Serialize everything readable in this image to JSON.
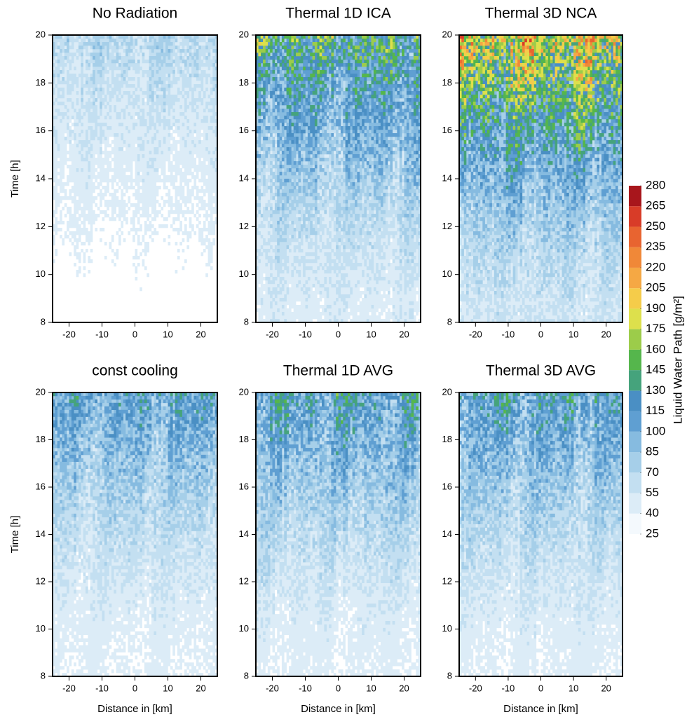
{
  "chart_data": [
    {
      "type": "heatmap",
      "title": "No Radiation",
      "ylabel": "Time [h]",
      "xlim": [
        -25,
        25
      ],
      "xticks": [
        -20,
        -10,
        0,
        10,
        20
      ],
      "ylim": [
        8,
        20
      ],
      "yticks": [
        8,
        10,
        12,
        14,
        16,
        18,
        20
      ]
    },
    {
      "type": "heatmap",
      "title": "Thermal 1D ICA",
      "xlim": [
        -25,
        25
      ],
      "xticks": [
        -20,
        -10,
        0,
        10,
        20
      ],
      "ylim": [
        8,
        20
      ],
      "yticks": [
        8,
        10,
        12,
        14,
        16,
        18,
        20
      ]
    },
    {
      "type": "heatmap",
      "title": "Thermal 3D NCA",
      "xlim": [
        -25,
        25
      ],
      "xticks": [
        -20,
        -10,
        0,
        10,
        20
      ],
      "ylim": [
        8,
        20
      ],
      "yticks": [
        8,
        10,
        12,
        14,
        16,
        18,
        20
      ]
    },
    {
      "type": "heatmap",
      "title": "const cooling",
      "ylabel": "Time [h]",
      "xlabel": "Distance in [km]",
      "xlim": [
        -25,
        25
      ],
      "xticks": [
        -20,
        -10,
        0,
        10,
        20
      ],
      "ylim": [
        8,
        20
      ],
      "yticks": [
        8,
        10,
        12,
        14,
        16,
        18,
        20
      ]
    },
    {
      "type": "heatmap",
      "title": "Thermal 1D AVG",
      "xlabel": "Distance in [km]",
      "xlim": [
        -25,
        25
      ],
      "xticks": [
        -20,
        -10,
        0,
        10,
        20
      ],
      "ylim": [
        8,
        20
      ],
      "yticks": [
        8,
        10,
        12,
        14,
        16,
        18,
        20
      ]
    },
    {
      "type": "heatmap",
      "title": "Thermal 3D AVG",
      "xlabel": "Distance in [km]",
      "xlim": [
        -25,
        25
      ],
      "xticks": [
        -20,
        -10,
        0,
        10,
        20
      ],
      "ylim": [
        8,
        20
      ],
      "yticks": [
        8,
        10,
        12,
        14,
        16,
        18,
        20
      ]
    }
  ],
  "colorbar": {
    "label": "Liquid Water Path [g/m²]",
    "ticks": [
      25,
      40,
      55,
      70,
      85,
      100,
      115,
      130,
      145,
      160,
      175,
      190,
      205,
      220,
      235,
      250,
      265,
      280
    ],
    "colors": [
      "#f4f9fd",
      "#dcecf7",
      "#c3dff1",
      "#a6cfe9",
      "#86bbe0",
      "#5f9fd2",
      "#4a8fc4",
      "#45a37c",
      "#55b64c",
      "#9ccc4a",
      "#dde04c",
      "#f5cc4a",
      "#f5a844",
      "#f08838",
      "#e86430",
      "#d83c28",
      "#a8161c"
    ]
  }
}
